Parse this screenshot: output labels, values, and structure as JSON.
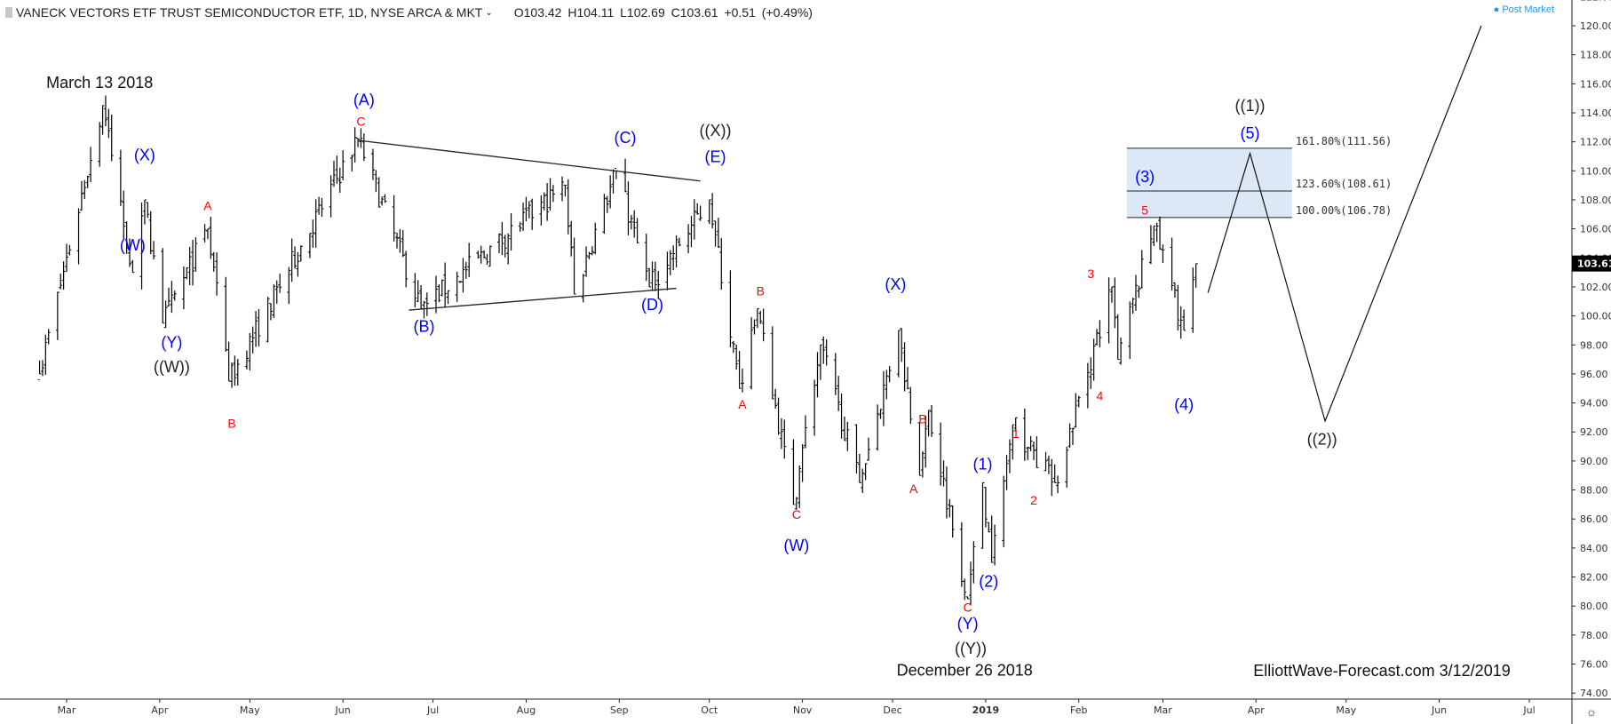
{
  "header": {
    "symbol_title": "VANECK VECTORS ETF TRUST SEMICONDUCTOR ETF, 1D, NYSE ARCA & MKT",
    "ohlc": "O103.42  H104.11  L102.69  C103.61  +0.51 (+0.49%)",
    "post_market": "Post Market"
  },
  "chart_data": {
    "type": "ohlc",
    "title": "VANECK VECTORS ETF TRUST SEMICONDUCTOR ETF, 1D, NYSE ARCA & MKT",
    "ylim": [
      74,
      122
    ],
    "y_ticks": [
      "74.00",
      "76.00",
      "78.00",
      "80.00",
      "82.00",
      "84.00",
      "86.00",
      "88.00",
      "90.00",
      "92.00",
      "94.00",
      "96.00",
      "98.00",
      "100.00",
      "102.00",
      "104.00",
      "106.00",
      "108.00",
      "110.00",
      "112.00",
      "114.00",
      "116.00",
      "118.00",
      "120.00",
      "122.00"
    ],
    "x_ticks": [
      {
        "label": "Mar",
        "date": "2018-03-01"
      },
      {
        "label": "Apr",
        "date": "2018-04-01"
      },
      {
        "label": "May",
        "date": "2018-05-01"
      },
      {
        "label": "Jun",
        "date": "2018-06-01"
      },
      {
        "label": "Jul",
        "date": "2018-07-01"
      },
      {
        "label": "Aug",
        "date": "2018-08-01"
      },
      {
        "label": "Sep",
        "date": "2018-09-01"
      },
      {
        "label": "Oct",
        "date": "2018-10-01"
      },
      {
        "label": "Nov",
        "date": "2018-11-01"
      },
      {
        "label": "Dec",
        "date": "2018-12-01"
      },
      {
        "label": "2019",
        "date": "2019-01-01",
        "bold": true
      },
      {
        "label": "Feb",
        "date": "2019-02-01"
      },
      {
        "label": "Mar",
        "date": "2019-03-01"
      },
      {
        "label": "Apr",
        "date": "2019-04-01"
      },
      {
        "label": "May",
        "date": "2019-05-01"
      },
      {
        "label": "Jun",
        "date": "2019-06-01"
      },
      {
        "label": "Jul",
        "date": "2019-07-01"
      }
    ],
    "last_price": "103.61",
    "price_pivots": [
      [
        "2018-02-20",
        96
      ],
      [
        "2018-03-13",
        114.5
      ],
      [
        "2018-03-23",
        103
      ],
      [
        "2018-03-27",
        108
      ],
      [
        "2018-04-02",
        99.5
      ],
      [
        "2018-04-17",
        106
      ],
      [
        "2018-04-24",
        95.5
      ],
      [
        "2018-06-06",
        112.2
      ],
      [
        "2018-06-27",
        100.5
      ],
      [
        "2018-08-14",
        109
      ],
      [
        "2018-08-17",
        101.5
      ],
      [
        "2018-08-31",
        110
      ],
      [
        "2018-09-11",
        102
      ],
      [
        "2018-10-01",
        108
      ],
      [
        "2018-10-11",
        95
      ],
      [
        "2018-10-17",
        100.5
      ],
      [
        "2018-10-29",
        87
      ],
      [
        "2018-11-07",
        98
      ],
      [
        "2018-11-20",
        88.5
      ],
      [
        "2018-12-03",
        99
      ],
      [
        "2018-12-10",
        89
      ],
      [
        "2018-12-13",
        93.5
      ],
      [
        "2018-12-26",
        80.5
      ],
      [
        "2018-12-31",
        88.5
      ],
      [
        "2019-01-03",
        83
      ],
      [
        "2019-01-10",
        92.5
      ],
      [
        "2019-01-24",
        88.5
      ],
      [
        "2019-02-12",
        102
      ],
      [
        "2019-02-14",
        97
      ],
      [
        "2019-02-26",
        106.2
      ],
      [
        "2019-03-08",
        99
      ],
      [
        "2019-03-12",
        103.6
      ]
    ],
    "trendlines": [
      {
        "from": [
          "2018-06-06",
          112.1
        ],
        "to": [
          "2018-09-28",
          109.3
        ]
      },
      {
        "from": [
          "2018-06-23",
          100.4
        ],
        "to": [
          "2018-09-20",
          101.9
        ]
      }
    ],
    "projection": [
      [
        "2019-03-16",
        101.6
      ],
      [
        "2019-03-30",
        111.2
      ],
      [
        "2019-04-24",
        92.75
      ],
      [
        "2019-06-15",
        120
      ]
    ],
    "fib_zone": {
      "from_date": "2019-02-17",
      "to_date": "2019-04-13",
      "color": "#dce8f5",
      "levels": [
        {
          "price": 111.56,
          "label": "161.80%(111.56)"
        },
        {
          "price": 108.61,
          "label": "123.60%(108.61)"
        },
        {
          "price": 106.78,
          "label": "100.00%(106.78)"
        }
      ]
    },
    "annotations": [
      {
        "text": "March 13 2018",
        "date": "2018-03-12",
        "price": 116.1,
        "color": "#111111",
        "size": 18
      },
      {
        "text": "(X)",
        "date": "2018-03-27",
        "price": 111.1,
        "color": "#0000ff",
        "size": 18
      },
      {
        "text": "(W)",
        "date": "2018-03-23",
        "price": 104.9,
        "color": "#0000ff",
        "size": 18
      },
      {
        "text": "(Y)",
        "date": "2018-04-05",
        "price": 98.2,
        "color": "#0000ff",
        "size": 18
      },
      {
        "text": "((W))",
        "date": "2018-04-05",
        "price": 96.5,
        "color": "#222222",
        "size": 18
      },
      {
        "text": "A",
        "date": "2018-04-17",
        "price": 107.6,
        "color": "#ff0000",
        "size": 14
      },
      {
        "text": "B",
        "date": "2018-04-25",
        "price": 92.6,
        "color": "#ff0000",
        "size": 14
      },
      {
        "text": "(A)",
        "date": "2018-06-08",
        "price": 114.9,
        "color": "#0000ff",
        "size": 18
      },
      {
        "text": "C",
        "date": "2018-06-07",
        "price": 113.4,
        "color": "#ff0000",
        "size": 14
      },
      {
        "text": "(B)",
        "date": "2018-06-28",
        "price": 99.3,
        "color": "#0000ff",
        "size": 18
      },
      {
        "text": "(C)",
        "date": "2018-09-03",
        "price": 112.3,
        "color": "#0000ff",
        "size": 18
      },
      {
        "text": "((X))",
        "date": "2018-10-03",
        "price": 112.8,
        "color": "#222222",
        "size": 18
      },
      {
        "text": "(E)",
        "date": "2018-10-03",
        "price": 111.0,
        "color": "#0000ff",
        "size": 18
      },
      {
        "text": "(D)",
        "date": "2018-09-12",
        "price": 100.8,
        "color": "#0000ff",
        "size": 18
      },
      {
        "text": "B",
        "date": "2018-10-18",
        "price": 101.7,
        "color": "#ff0000",
        "size": 14
      },
      {
        "text": "A",
        "date": "2018-10-12",
        "price": 93.9,
        "color": "#ff0000",
        "size": 14
      },
      {
        "text": "C",
        "date": "2018-10-30",
        "price": 86.3,
        "color": "#ff0000",
        "size": 14
      },
      {
        "text": "(W)",
        "date": "2018-10-30",
        "price": 84.2,
        "color": "#0000ff",
        "size": 18
      },
      {
        "text": "(X)",
        "date": "2018-12-02",
        "price": 102.2,
        "color": "#0000ff",
        "size": 18
      },
      {
        "text": "B",
        "date": "2018-12-11",
        "price": 92.9,
        "color": "#ff0000",
        "size": 14
      },
      {
        "text": "A",
        "date": "2018-12-08",
        "price": 88.1,
        "color": "#ff0000",
        "size": 14
      },
      {
        "text": "(1)",
        "date": "2018-12-31",
        "price": 89.8,
        "color": "#0000ff",
        "size": 18
      },
      {
        "text": "(2)",
        "date": "2019-01-02",
        "price": 81.7,
        "color": "#0000ff",
        "size": 18
      },
      {
        "text": "C",
        "date": "2018-12-26",
        "price": 79.9,
        "color": "#ff0000",
        "size": 14
      },
      {
        "text": "(Y)",
        "date": "2018-12-26",
        "price": 78.8,
        "color": "#0000ff",
        "size": 18
      },
      {
        "text": "((Y))",
        "date": "2018-12-27",
        "price": 77.1,
        "color": "#222222",
        "size": 18
      },
      {
        "text": "December 26  2018",
        "date": "2018-12-25",
        "price": 75.6,
        "color": "#111111",
        "size": 18
      },
      {
        "text": "1",
        "date": "2019-01-11",
        "price": 91.9,
        "color": "#ff0000",
        "size": 14
      },
      {
        "text": "2",
        "date": "2019-01-17",
        "price": 87.3,
        "color": "#ff0000",
        "size": 14
      },
      {
        "text": "3",
        "date": "2019-02-05",
        "price": 102.9,
        "color": "#ff0000",
        "size": 14
      },
      {
        "text": "4",
        "date": "2019-02-08",
        "price": 94.5,
        "color": "#ff0000",
        "size": 14
      },
      {
        "text": "5",
        "date": "2019-02-23",
        "price": 107.3,
        "color": "#ff0000",
        "size": 14
      },
      {
        "text": "(3)",
        "date": "2019-02-23",
        "price": 109.6,
        "color": "#0000ff",
        "size": 18
      },
      {
        "text": "(4)",
        "date": "2019-03-08",
        "price": 93.9,
        "color": "#0000ff",
        "size": 18
      },
      {
        "text": "(5)",
        "date": "2019-03-30",
        "price": 112.6,
        "color": "#0000ff",
        "size": 18
      },
      {
        "text": "((1))",
        "date": "2019-03-30",
        "price": 114.5,
        "color": "#222222",
        "size": 18
      },
      {
        "text": "((2))",
        "date": "2019-04-23",
        "price": 91.5,
        "color": "#222222",
        "size": 18
      }
    ],
    "watermark": "ElliottWave-Forecast.com 3/12/2019"
  }
}
